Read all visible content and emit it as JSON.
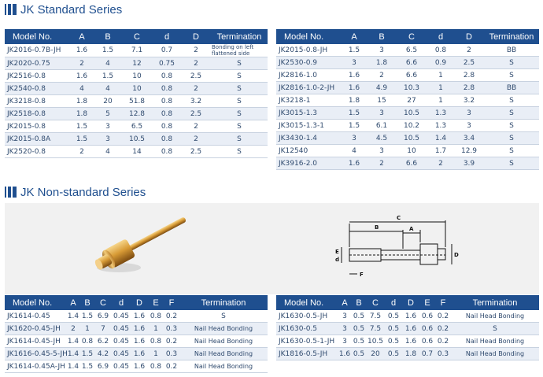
{
  "standard": {
    "title": "JK Standard Series",
    "left": {
      "headers": [
        "Model No.",
        "A",
        "B",
        "C",
        "d",
        "D",
        "Termination"
      ],
      "rows": [
        [
          "JK2016-0.7B-JH",
          "1.6",
          "1.5",
          "7.1",
          "0.7",
          "2",
          "Bonding on left flattened side"
        ],
        [
          "JK2020-0.75",
          "2",
          "4",
          "12",
          "0.75",
          "2",
          "S"
        ],
        [
          "JK2516-0.8",
          "1.6",
          "1.5",
          "10",
          "0.8",
          "2.5",
          "S"
        ],
        [
          "JK2540-0.8",
          "4",
          "4",
          "10",
          "0.8",
          "2",
          "S"
        ],
        [
          "JK3218-0.8",
          "1.8",
          "20",
          "51.8",
          "0.8",
          "3.2",
          "S"
        ],
        [
          "JK2518-0.8",
          "1.8",
          "5",
          "12.8",
          "0.8",
          "2.5",
          "S"
        ],
        [
          "JK2015-0.8",
          "1.5",
          "3",
          "6.5",
          "0.8",
          "2",
          "S"
        ],
        [
          "JK2015-0.8A",
          "1.5",
          "3",
          "10.5",
          "0.8",
          "2",
          "S"
        ],
        [
          "JK2520-0.8",
          "2",
          "4",
          "14",
          "0.8",
          "2.5",
          "S"
        ]
      ]
    },
    "right": {
      "headers": [
        "Model No.",
        "A",
        "B",
        "C",
        "d",
        "D",
        "Termination"
      ],
      "rows": [
        [
          "JK2015-0.8-JH",
          "1.5",
          "3",
          "6.5",
          "0.8",
          "2",
          "BB"
        ],
        [
          "JK2530-0.9",
          "3",
          "1.8",
          "6.6",
          "0.9",
          "2.5",
          "S"
        ],
        [
          "JK2816-1.0",
          "1.6",
          "2",
          "6.6",
          "1",
          "2.8",
          "S"
        ],
        [
          "JK2816-1.0-2-JH",
          "1.6",
          "4.9",
          "10.3",
          "1",
          "2.8",
          "BB"
        ],
        [
          "JK3218-1",
          "1.8",
          "15",
          "27",
          "1",
          "3.2",
          "S"
        ],
        [
          "JK3015-1.3",
          "1.5",
          "3",
          "10.5",
          "1.3",
          "3",
          "S"
        ],
        [
          "JK3015-1.3-1",
          "1.5",
          "6.1",
          "10.2",
          "1.3",
          "3",
          "S"
        ],
        [
          "JK3430-1.4",
          "3",
          "4.5",
          "10.5",
          "1.4",
          "3.4",
          "S"
        ],
        [
          "JK12540",
          "4",
          "3",
          "10",
          "1.7",
          "12.9",
          "S"
        ],
        [
          "JK3916-2.0",
          "1.6",
          "2",
          "6.6",
          "2",
          "3.9",
          "S"
        ]
      ]
    }
  },
  "nonstandard": {
    "title": "JK Non-standard Series",
    "diagram": {
      "labels": [
        "C",
        "B",
        "A",
        "D",
        "E",
        "d",
        "F"
      ]
    },
    "left": {
      "headers": [
        "Model No.",
        "A",
        "B",
        "C",
        "d",
        "D",
        "E",
        "F",
        "Termination"
      ],
      "rows": [
        [
          "JK1614-0.45",
          "1.4",
          "1.5",
          "6.9",
          "0.45",
          "1.6",
          "0.8",
          "0.2",
          "S"
        ],
        [
          "JK1620-0.45-JH",
          "2",
          "1",
          "7",
          "0.45",
          "1.6",
          "1",
          "0.3",
          "Nail Head Bonding"
        ],
        [
          "JK1614-0.45-JH",
          "1.4",
          "0.8",
          "6.2",
          "0.45",
          "1.6",
          "0.8",
          "0.2",
          "Nail Head Bonding"
        ],
        [
          "JK1616-0.45-5-JH",
          "1.4",
          "1.5",
          "4.2",
          "0.45",
          "1.6",
          "1",
          "0.3",
          "Nail Head Bonding"
        ],
        [
          "JK1614-0.45A-JH",
          "1.4",
          "1.5",
          "6.9",
          "0.45",
          "1.6",
          "0.8",
          "0.2",
          "Nail Head Bonding"
        ]
      ]
    },
    "right": {
      "headers": [
        "Model No.",
        "A",
        "B",
        "C",
        "d",
        "D",
        "E",
        "F",
        "Termination"
      ],
      "rows": [
        [
          "JK1630-0.5-JH",
          "3",
          "0.5",
          "7.5",
          "0.5",
          "1.6",
          "0.6",
          "0.2",
          "Nail Head Bonding"
        ],
        [
          "JK1630-0.5",
          "3",
          "0.5",
          "7.5",
          "0.5",
          "1.6",
          "0.6",
          "0.2",
          "S"
        ],
        [
          "JK1630-0.5-1-JH",
          "3",
          "0.5",
          "10.5",
          "0.5",
          "1.6",
          "0.6",
          "0.2",
          "Nail Head Bonding"
        ],
        [
          "JK1816-0.5-JH",
          "1.6",
          "0.5",
          "20",
          "0.5",
          "1.8",
          "0.7",
          "0.3",
          "Nail Head Bonding"
        ]
      ]
    }
  }
}
